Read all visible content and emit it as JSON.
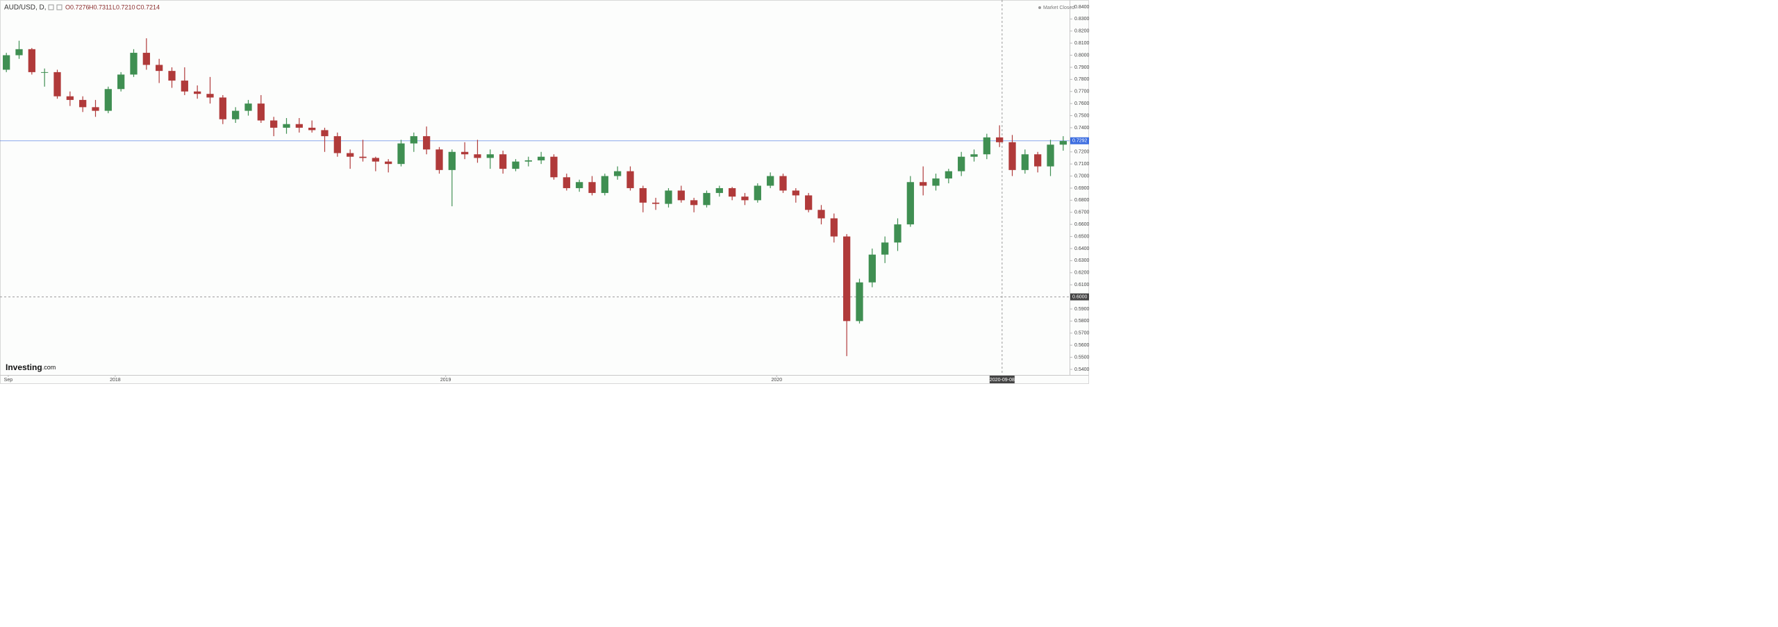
{
  "chart_data": {
    "type": "candlestick",
    "title": "AUD/USD, D,",
    "ohlc_readout": [
      "O0.7276",
      "H0.7311",
      "L0.7210",
      "C0.7214"
    ],
    "status": "Market Closed",
    "brand": "Investing",
    "brand_suffix": ".com",
    "up_color": "#3f8f52",
    "down_color": "#b03a3a",
    "grid": false,
    "open": [
      0.788,
      0.8,
      0.805,
      0.786,
      0.786,
      0.766,
      0.763,
      0.757,
      0.754,
      0.772,
      0.784,
      0.802,
      0.792,
      0.787,
      0.779,
      0.77,
      0.768,
      0.765,
      0.747,
      0.754,
      0.76,
      0.746,
      0.74,
      0.743,
      0.74,
      0.738,
      0.733,
      0.719,
      0.716,
      0.715,
      0.712,
      0.71,
      0.727,
      0.733,
      0.722,
      0.705,
      0.72,
      0.718,
      0.715,
      0.718,
      0.706,
      0.712,
      0.713,
      0.716,
      0.699,
      0.69,
      0.695,
      0.686,
      0.7,
      0.704,
      0.69,
      0.678,
      0.677,
      0.688,
      0.68,
      0.676,
      0.686,
      0.69,
      0.683,
      0.68,
      0.692,
      0.7,
      0.688,
      0.684,
      0.672,
      0.665,
      0.65,
      0.58,
      0.612,
      0.635,
      0.645,
      0.66,
      0.695,
      0.692,
      0.698,
      0.704,
      0.716,
      0.718,
      0.732,
      0.728,
      0.705,
      0.718,
      0.708,
      0.726
    ],
    "high": [
      0.802,
      0.812,
      0.806,
      0.789,
      0.788,
      0.77,
      0.766,
      0.763,
      0.774,
      0.786,
      0.805,
      0.814,
      0.797,
      0.79,
      0.79,
      0.775,
      0.782,
      0.767,
      0.757,
      0.763,
      0.767,
      0.749,
      0.748,
      0.748,
      0.746,
      0.74,
      0.736,
      0.722,
      0.73,
      0.716,
      0.714,
      0.73,
      0.736,
      0.741,
      0.724,
      0.722,
      0.728,
      0.73,
      0.722,
      0.721,
      0.714,
      0.716,
      0.72,
      0.718,
      0.702,
      0.697,
      0.7,
      0.702,
      0.708,
      0.708,
      0.692,
      0.682,
      0.69,
      0.692,
      0.682,
      0.688,
      0.692,
      0.691,
      0.686,
      0.694,
      0.703,
      0.702,
      0.69,
      0.686,
      0.676,
      0.669,
      0.652,
      0.615,
      0.64,
      0.65,
      0.665,
      0.7,
      0.708,
      0.702,
      0.706,
      0.72,
      0.722,
      0.735,
      0.742,
      0.734,
      0.722,
      0.72,
      0.73,
      0.733
    ],
    "low": [
      0.786,
      0.797,
      0.784,
      0.774,
      0.764,
      0.758,
      0.753,
      0.749,
      0.752,
      0.77,
      0.782,
      0.788,
      0.777,
      0.773,
      0.767,
      0.764,
      0.76,
      0.743,
      0.744,
      0.75,
      0.744,
      0.733,
      0.735,
      0.736,
      0.736,
      0.72,
      0.716,
      0.706,
      0.712,
      0.704,
      0.703,
      0.708,
      0.72,
      0.718,
      0.702,
      0.675,
      0.714,
      0.711,
      0.706,
      0.702,
      0.704,
      0.708,
      0.71,
      0.697,
      0.688,
      0.687,
      0.684,
      0.684,
      0.697,
      0.688,
      0.67,
      0.672,
      0.674,
      0.678,
      0.67,
      0.674,
      0.683,
      0.68,
      0.676,
      0.678,
      0.69,
      0.686,
      0.678,
      0.67,
      0.66,
      0.645,
      0.551,
      0.578,
      0.608,
      0.628,
      0.638,
      0.658,
      0.684,
      0.688,
      0.694,
      0.7,
      0.712,
      0.714,
      0.724,
      0.7,
      0.702,
      0.703,
      0.7,
      0.721
    ],
    "close": [
      0.8,
      0.805,
      0.786,
      0.786,
      0.766,
      0.763,
      0.757,
      0.754,
      0.772,
      0.784,
      0.802,
      0.792,
      0.787,
      0.779,
      0.77,
      0.768,
      0.765,
      0.747,
      0.754,
      0.76,
      0.746,
      0.74,
      0.743,
      0.74,
      0.738,
      0.733,
      0.719,
      0.716,
      0.715,
      0.712,
      0.71,
      0.727,
      0.733,
      0.722,
      0.705,
      0.72,
      0.718,
      0.715,
      0.718,
      0.706,
      0.712,
      0.713,
      0.716,
      0.699,
      0.69,
      0.695,
      0.686,
      0.7,
      0.704,
      0.69,
      0.678,
      0.677,
      0.688,
      0.68,
      0.676,
      0.686,
      0.69,
      0.683,
      0.68,
      0.692,
      0.7,
      0.688,
      0.684,
      0.672,
      0.665,
      0.65,
      0.58,
      0.612,
      0.635,
      0.645,
      0.66,
      0.695,
      0.692,
      0.698,
      0.704,
      0.716,
      0.718,
      0.732,
      0.728,
      0.705,
      0.718,
      0.708,
      0.726,
      0.729
    ],
    "xlim": [
      0,
      84
    ],
    "xticks": [
      {
        "value": 0.65,
        "label": "Sep"
      },
      {
        "value": 9.05,
        "label": "2018"
      },
      {
        "value": 35.0,
        "label": "2019"
      },
      {
        "value": 61.0,
        "label": "2020"
      }
    ],
    "ylim": [
      0.5354,
      0.8457
    ],
    "yticks": [
      {
        "value": 0.84,
        "label": "0.8400"
      },
      {
        "value": 0.83,
        "label": "0.8300"
      },
      {
        "value": 0.82,
        "label": "0.8200"
      },
      {
        "value": 0.81,
        "label": "0.8100"
      },
      {
        "value": 0.8,
        "label": "0.8000"
      },
      {
        "value": 0.79,
        "label": "0.7900"
      },
      {
        "value": 0.78,
        "label": "0.7800"
      },
      {
        "value": 0.77,
        "label": "0.7700"
      },
      {
        "value": 0.76,
        "label": "0.7600"
      },
      {
        "value": 0.75,
        "label": "0.7500"
      },
      {
        "value": 0.74,
        "label": "0.7400"
      },
      {
        "value": 0.73,
        "label": "0.7300"
      },
      {
        "value": 0.72,
        "label": "0.7200"
      },
      {
        "value": 0.71,
        "label": "0.7100"
      },
      {
        "value": 0.7,
        "label": "0.7000"
      },
      {
        "value": 0.69,
        "label": "0.6900"
      },
      {
        "value": 0.68,
        "label": "0.6800"
      },
      {
        "value": 0.67,
        "label": "0.6700"
      },
      {
        "value": 0.66,
        "label": "0.6600"
      },
      {
        "value": 0.65,
        "label": "0.6500"
      },
      {
        "value": 0.64,
        "label": "0.6400"
      },
      {
        "value": 0.63,
        "label": "0.6300"
      },
      {
        "value": 0.62,
        "label": "0.6200"
      },
      {
        "value": 0.61,
        "label": "0.6100"
      },
      {
        "value": 0.6,
        "label": "0.6000"
      },
      {
        "value": 0.59,
        "label": "0.5900"
      },
      {
        "value": 0.58,
        "label": "0.5800"
      },
      {
        "value": 0.57,
        "label": "0.5700"
      },
      {
        "value": 0.56,
        "label": "0.5600"
      },
      {
        "value": 0.55,
        "label": "0.5500"
      },
      {
        "value": 0.54,
        "label": "0.5400"
      }
    ],
    "last_price": {
      "value": 0.7292,
      "label": "0.7292",
      "color": "#3d6ee0"
    },
    "crosshair": {
      "x": 78.7,
      "x_label": "2020-09-08",
      "y": 0.6,
      "y_label": "0.6000"
    }
  }
}
